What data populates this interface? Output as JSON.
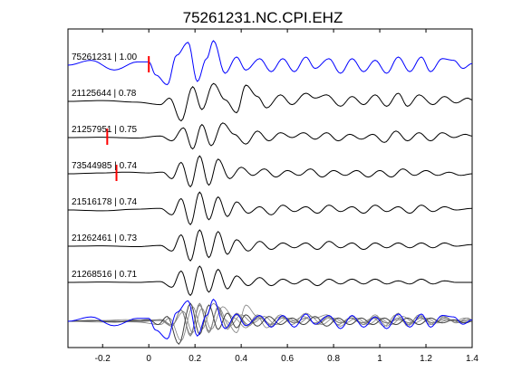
{
  "chart_data": {
    "type": "line",
    "title": "75261231.NC.CPI.EHZ",
    "xlabel": "",
    "ylabel": "",
    "xlim": [
      -0.35,
      1.4
    ],
    "xticks": [
      -0.2,
      0,
      0.2,
      0.4,
      0.6,
      0.8,
      1,
      1.2,
      1.4
    ],
    "xtick_labels": [
      "-0.2",
      "0",
      "0.2",
      "0.4",
      "0.6",
      "0.8",
      "1",
      "1.2",
      "1.4"
    ],
    "grid": false,
    "legend": "none",
    "colors": {
      "master": "#0000ff",
      "trace": "#000000",
      "pick": "#ff0000",
      "stack": "#808080"
    },
    "traces": [
      {
        "label": "75261231 | 1.00",
        "pick": 0.0,
        "color": "master",
        "onset": 0.0,
        "points": [
          [
            -0.35,
            0
          ],
          [
            -0.25,
            0.3
          ],
          [
            -0.15,
            -0.3
          ],
          [
            -0.05,
            0.2
          ],
          [
            0,
            0.2
          ],
          [
            0.03,
            -0.6
          ],
          [
            0.08,
            -1.2
          ],
          [
            0.12,
            0.6
          ],
          [
            0.17,
            1.4
          ],
          [
            0.21,
            -1.0
          ],
          [
            0.25,
            0.4
          ],
          [
            0.28,
            1.5
          ],
          [
            0.33,
            -0.5
          ],
          [
            0.38,
            0.5
          ],
          [
            0.42,
            -0.3
          ],
          [
            0.48,
            0.4
          ],
          [
            0.53,
            -0.4
          ],
          [
            0.58,
            0.4
          ],
          [
            0.63,
            -0.4
          ],
          [
            0.68,
            0.5
          ],
          [
            0.72,
            -0.2
          ],
          [
            0.78,
            0.4
          ],
          [
            0.83,
            -0.5
          ],
          [
            0.88,
            0.4
          ],
          [
            0.93,
            -0.4
          ],
          [
            0.98,
            0.3
          ],
          [
            1.03,
            -0.5
          ],
          [
            1.08,
            0.5
          ],
          [
            1.13,
            -0.4
          ],
          [
            1.18,
            0.5
          ],
          [
            1.22,
            -0.4
          ],
          [
            1.27,
            0.4
          ],
          [
            1.32,
            0.3
          ],
          [
            1.36,
            -0.2
          ],
          [
            1.4,
            0.1
          ]
        ]
      },
      {
        "label": "21125644 | 0.78",
        "pick": null,
        "color": "trace",
        "onset": 0.02,
        "points": [
          [
            -0.35,
            0
          ],
          [
            -0.2,
            0.05
          ],
          [
            -0.05,
            -0.05
          ],
          [
            0.05,
            -0.2
          ],
          [
            0.09,
            0.2
          ],
          [
            0.14,
            -1.2
          ],
          [
            0.19,
            0.9
          ],
          [
            0.23,
            -0.5
          ],
          [
            0.28,
            1.1
          ],
          [
            0.33,
            0.1
          ],
          [
            0.38,
            -0.7
          ],
          [
            0.42,
            1.0
          ],
          [
            0.47,
            0.3
          ],
          [
            0.51,
            -0.4
          ],
          [
            0.57,
            0.4
          ],
          [
            0.62,
            -0.2
          ],
          [
            0.68,
            0.5
          ],
          [
            0.72,
            0.2
          ],
          [
            0.77,
            0.4
          ],
          [
            0.83,
            -0.3
          ],
          [
            0.88,
            0.3
          ],
          [
            0.93,
            -0.2
          ],
          [
            0.98,
            0.4
          ],
          [
            1.03,
            -0.3
          ],
          [
            1.08,
            0.5
          ],
          [
            1.12,
            -0.3
          ],
          [
            1.17,
            0.4
          ],
          [
            1.23,
            -0.2
          ],
          [
            1.28,
            0.3
          ],
          [
            1.33,
            -0.1
          ],
          [
            1.38,
            0.2
          ],
          [
            1.4,
            0.1
          ]
        ]
      },
      {
        "label": "21257951 | 0.75",
        "pick": -0.18,
        "color": "trace",
        "onset": 0.04,
        "points": [
          [
            -0.35,
            0
          ],
          [
            -0.2,
            0.02
          ],
          [
            -0.05,
            -0.03
          ],
          [
            0.05,
            0.1
          ],
          [
            0.1,
            -0.2
          ],
          [
            0.15,
            0.6
          ],
          [
            0.19,
            -0.7
          ],
          [
            0.23,
            0.8
          ],
          [
            0.27,
            -0.5
          ],
          [
            0.32,
            0.9
          ],
          [
            0.37,
            0.2
          ],
          [
            0.42,
            -0.4
          ],
          [
            0.47,
            0.4
          ],
          [
            0.52,
            -0.2
          ],
          [
            0.57,
            0.3
          ],
          [
            0.62,
            0.0
          ],
          [
            0.67,
            0.3
          ],
          [
            0.72,
            -0.1
          ],
          [
            0.77,
            0.3
          ],
          [
            0.82,
            -0.2
          ],
          [
            0.87,
            0.2
          ],
          [
            0.92,
            -0.1
          ],
          [
            0.97,
            0.2
          ],
          [
            1.02,
            -0.3
          ],
          [
            1.07,
            0.4
          ],
          [
            1.12,
            -0.2
          ],
          [
            1.17,
            0.3
          ],
          [
            1.22,
            -0.2
          ],
          [
            1.27,
            0.3
          ],
          [
            1.32,
            0.0
          ],
          [
            1.37,
            0.2
          ],
          [
            1.4,
            0.1
          ]
        ]
      },
      {
        "label": "73544985 | 0.74",
        "pick": -0.14,
        "color": "trace",
        "onset": 0.05,
        "points": [
          [
            -0.35,
            0
          ],
          [
            -0.2,
            0.05
          ],
          [
            -0.1,
            0.1
          ],
          [
            0,
            0.05
          ],
          [
            0.06,
            0.1
          ],
          [
            0.1,
            -0.3
          ],
          [
            0.14,
            0.7
          ],
          [
            0.18,
            -0.8
          ],
          [
            0.22,
            1.1
          ],
          [
            0.26,
            -0.7
          ],
          [
            0.3,
            0.9
          ],
          [
            0.35,
            -0.3
          ],
          [
            0.4,
            0.4
          ],
          [
            0.45,
            -0.1
          ],
          [
            0.5,
            0.3
          ],
          [
            0.55,
            -0.2
          ],
          [
            0.6,
            0.2
          ],
          [
            0.65,
            -0.1
          ],
          [
            0.7,
            0.3
          ],
          [
            0.75,
            -0.2
          ],
          [
            0.8,
            0.2
          ],
          [
            0.85,
            -0.1
          ],
          [
            0.9,
            0.2
          ],
          [
            0.95,
            -0.2
          ],
          [
            1.0,
            0.2
          ],
          [
            1.05,
            -0.2
          ],
          [
            1.1,
            0.3
          ],
          [
            1.15,
            -0.1
          ],
          [
            1.2,
            0.2
          ],
          [
            1.25,
            -0.1
          ],
          [
            1.3,
            0.1
          ],
          [
            1.35,
            -0.1
          ],
          [
            1.4,
            0.0
          ]
        ]
      },
      {
        "label": "21516178 | 0.74",
        "pick": null,
        "color": "trace",
        "onset": 0.05,
        "points": [
          [
            -0.35,
            0
          ],
          [
            -0.2,
            -0.05
          ],
          [
            -0.05,
            0.05
          ],
          [
            0.05,
            0.1
          ],
          [
            0.1,
            -0.3
          ],
          [
            0.14,
            0.7
          ],
          [
            0.18,
            -0.9
          ],
          [
            0.22,
            1.1
          ],
          [
            0.26,
            -0.6
          ],
          [
            0.3,
            0.8
          ],
          [
            0.34,
            -0.4
          ],
          [
            0.38,
            0.5
          ],
          [
            0.43,
            -0.2
          ],
          [
            0.48,
            0.2
          ],
          [
            0.53,
            -0.3
          ],
          [
            0.58,
            0.3
          ],
          [
            0.63,
            -0.1
          ],
          [
            0.68,
            0.2
          ],
          [
            0.73,
            -0.2
          ],
          [
            0.78,
            0.3
          ],
          [
            0.83,
            -0.1
          ],
          [
            0.88,
            0.2
          ],
          [
            0.93,
            -0.2
          ],
          [
            0.98,
            0.3
          ],
          [
            1.03,
            -0.1
          ],
          [
            1.08,
            0.2
          ],
          [
            1.13,
            -0.2
          ],
          [
            1.18,
            0.3
          ],
          [
            1.23,
            -0.1
          ],
          [
            1.28,
            0.2
          ],
          [
            1.33,
            0.0
          ],
          [
            1.4,
            0.1
          ]
        ]
      },
      {
        "label": "21262461 | 0.73",
        "pick": null,
        "color": "trace",
        "onset": 0.05,
        "points": [
          [
            -0.35,
            0
          ],
          [
            -0.2,
            0.02
          ],
          [
            -0.05,
            -0.03
          ],
          [
            0.05,
            0.05
          ],
          [
            0.1,
            -0.3
          ],
          [
            0.14,
            0.7
          ],
          [
            0.18,
            -0.9
          ],
          [
            0.22,
            1.0
          ],
          [
            0.26,
            -0.7
          ],
          [
            0.3,
            0.9
          ],
          [
            0.34,
            -0.5
          ],
          [
            0.38,
            0.4
          ],
          [
            0.43,
            -0.3
          ],
          [
            0.48,
            0.3
          ],
          [
            0.53,
            -0.2
          ],
          [
            0.58,
            0.2
          ],
          [
            0.63,
            -0.1
          ],
          [
            0.68,
            0.2
          ],
          [
            0.73,
            -0.2
          ],
          [
            0.78,
            0.3
          ],
          [
            0.83,
            -0.1
          ],
          [
            0.88,
            0.2
          ],
          [
            0.93,
            -0.2
          ],
          [
            0.98,
            0.2
          ],
          [
            1.03,
            -0.1
          ],
          [
            1.08,
            0.2
          ],
          [
            1.13,
            -0.1
          ],
          [
            1.18,
            0.2
          ],
          [
            1.23,
            -0.1
          ],
          [
            1.28,
            0.2
          ],
          [
            1.33,
            0.0
          ],
          [
            1.4,
            0.1
          ]
        ]
      },
      {
        "label": "21268516 | 0.71",
        "pick": null,
        "color": "trace",
        "onset": 0.05,
        "points": [
          [
            -0.35,
            0
          ],
          [
            -0.2,
            0.02
          ],
          [
            -0.05,
            0.0
          ],
          [
            0.05,
            0.05
          ],
          [
            0.1,
            -0.3
          ],
          [
            0.14,
            0.7
          ],
          [
            0.18,
            -0.8
          ],
          [
            0.22,
            1.0
          ],
          [
            0.26,
            -0.6
          ],
          [
            0.3,
            0.8
          ],
          [
            0.34,
            -0.4
          ],
          [
            0.38,
            0.4
          ],
          [
            0.43,
            -0.2
          ],
          [
            0.48,
            0.3
          ],
          [
            0.53,
            -0.2
          ],
          [
            0.58,
            0.2
          ],
          [
            0.63,
            -0.1
          ],
          [
            0.68,
            0.2
          ],
          [
            0.73,
            -0.2
          ],
          [
            0.78,
            0.2
          ],
          [
            0.83,
            -0.1
          ],
          [
            0.88,
            0.2
          ],
          [
            0.93,
            -0.1
          ],
          [
            0.98,
            0.2
          ],
          [
            1.03,
            -0.1
          ],
          [
            1.08,
            0.1
          ],
          [
            1.13,
            -0.1
          ],
          [
            1.18,
            0.2
          ],
          [
            1.23,
            -0.1
          ],
          [
            1.28,
            0.1
          ],
          [
            1.33,
            0.0
          ],
          [
            1.4,
            0.0
          ]
        ]
      }
    ],
    "stack": {
      "points": [
        [
          -0.35,
          0
        ],
        [
          -0.25,
          0.05
        ],
        [
          -0.15,
          -0.05
        ],
        [
          -0.05,
          0.05
        ],
        [
          0.0,
          0.1
        ],
        [
          0.04,
          -0.2
        ],
        [
          0.08,
          0.3
        ],
        [
          0.13,
          -1.4
        ],
        [
          0.18,
          1.1
        ],
        [
          0.22,
          -0.8
        ],
        [
          0.26,
          1.0
        ],
        [
          0.3,
          -0.5
        ],
        [
          0.34,
          0.5
        ],
        [
          0.38,
          -0.4
        ],
        [
          0.42,
          0.4
        ],
        [
          0.47,
          -0.3
        ],
        [
          0.52,
          0.3
        ],
        [
          0.57,
          -0.2
        ],
        [
          0.62,
          0.2
        ],
        [
          0.67,
          -0.2
        ],
        [
          0.72,
          0.3
        ],
        [
          0.77,
          -0.3
        ],
        [
          0.82,
          0.2
        ],
        [
          0.87,
          -0.2
        ],
        [
          0.92,
          0.2
        ],
        [
          0.97,
          -0.2
        ],
        [
          1.02,
          0.2
        ],
        [
          1.07,
          -0.2
        ],
        [
          1.12,
          0.2
        ],
        [
          1.17,
          -0.2
        ],
        [
          1.22,
          0.2
        ],
        [
          1.27,
          -0.1
        ],
        [
          1.32,
          0.1
        ],
        [
          1.37,
          -0.1
        ],
        [
          1.4,
          0.0
        ]
      ]
    }
  }
}
